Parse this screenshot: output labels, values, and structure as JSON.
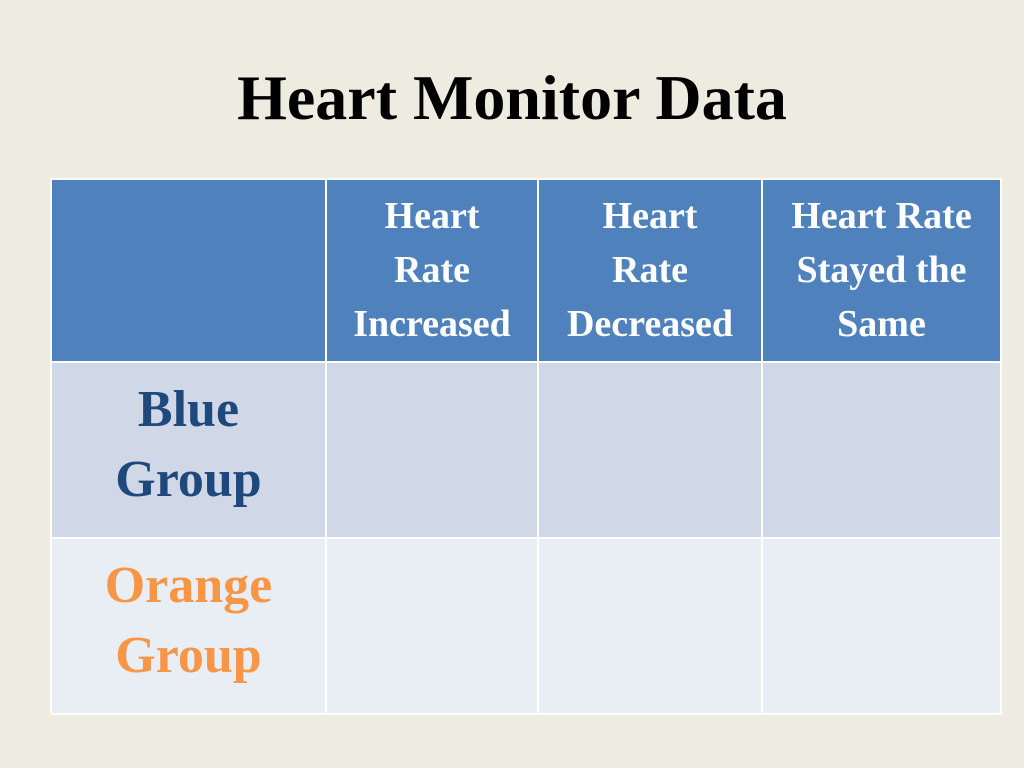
{
  "slide": {
    "title": "Heart Monitor Data"
  },
  "table": {
    "headers": [
      "",
      [
        "Heart",
        "Rate",
        "Increased"
      ],
      [
        "Heart",
        "Rate",
        "Decreased"
      ],
      [
        "Heart Rate",
        "Stayed the",
        "Same"
      ]
    ],
    "rows": [
      {
        "label": [
          "Blue",
          "Group"
        ],
        "cells": [
          "",
          "",
          ""
        ]
      },
      {
        "label": [
          "Orange",
          "Group"
        ],
        "cells": [
          "",
          "",
          ""
        ]
      }
    ]
  },
  "colors": {
    "background": "#eeebe1",
    "header_fill": "#4f81bd",
    "row1_fill": "#d0d8e8",
    "row2_fill": "#e9edf4",
    "blue_group_text": "#1f497d",
    "orange_group_text": "#f79646"
  }
}
